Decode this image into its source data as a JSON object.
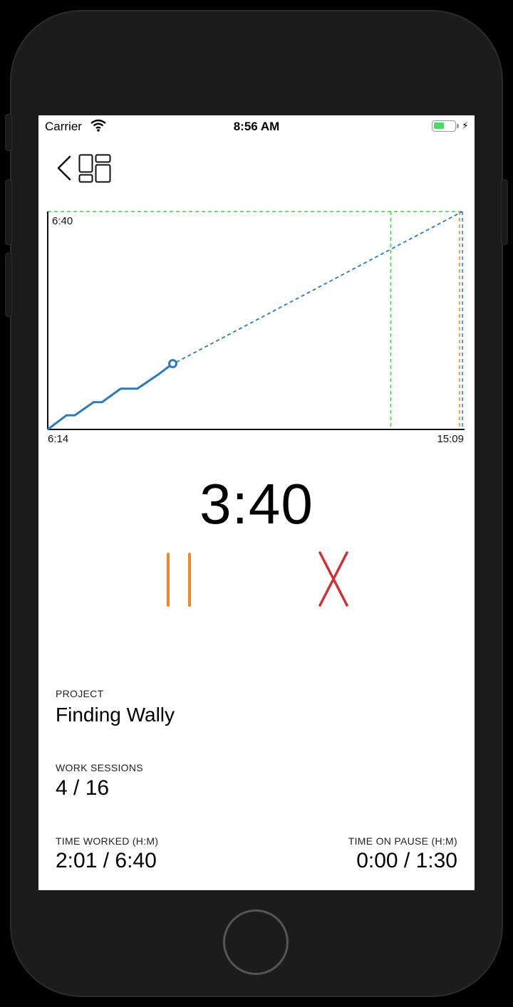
{
  "status_bar": {
    "carrier": "Carrier",
    "time": "8:56 AM",
    "battery_level": 0.5,
    "battery_color": "#4cd964"
  },
  "nav": {
    "back_icon": "chevron-left-icon",
    "layout_icon": "dashboard-layout-icon"
  },
  "chart_data": {
    "type": "line",
    "y_top_label": "6:40",
    "x_start_label": "6:14",
    "x_end_label": "15:09",
    "series": [
      {
        "style": "solid",
        "color": "#2e7ab6",
        "points": [
          [
            0,
            0
          ],
          [
            0.045,
            0.065
          ],
          [
            0.065,
            0.065
          ],
          [
            0.11,
            0.125
          ],
          [
            0.13,
            0.125
          ],
          [
            0.175,
            0.187
          ],
          [
            0.215,
            0.187
          ],
          [
            0.265,
            0.252
          ],
          [
            0.295,
            0.295
          ]
        ]
      },
      {
        "style": "dashed",
        "color": "#2e7ab6",
        "points": [
          [
            0.295,
            0.295
          ],
          [
            0.995,
            1.0
          ]
        ]
      }
    ],
    "current_marker": [
      0.3,
      0.302
    ],
    "targets": [
      {
        "style": "dashed",
        "color": "#4cc94c",
        "x": 0.823,
        "horizontal": true
      },
      {
        "style": "dashed",
        "color": "#f0872a",
        "x": 0.988,
        "horizontal": false
      },
      {
        "style": "dashed",
        "color": "#2e7ab6",
        "x": 0.995,
        "horizontal": false
      }
    ]
  },
  "timer": {
    "value": "3:40"
  },
  "controls": {
    "pause_color": "#f0872a",
    "stop_color": "#d22f2f"
  },
  "info": {
    "project_label": "PROJECT",
    "project_value": "Finding Wally",
    "sessions_label": "WORK SESSIONS",
    "sessions_value": "4 / 16",
    "worked_label": "TIME WORKED (H:M)",
    "worked_value": "2:01 / 6:40",
    "pause_label": "TIME ON PAUSE (H:M)",
    "pause_value": "0:00 / 1:30"
  }
}
